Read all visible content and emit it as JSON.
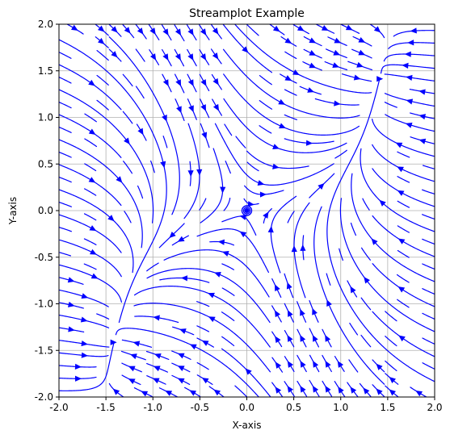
{
  "chart_data": {
    "type": "streamplot",
    "title": "Streamplot Example",
    "xlabel": "X-axis",
    "ylabel": "Y-axis",
    "xlim": [
      -2.0,
      2.0
    ],
    "ylim": [
      -2.0,
      2.0
    ],
    "x_ticks": [
      -2.0,
      -1.5,
      -1.0,
      -0.5,
      0.0,
      0.5,
      1.0,
      1.5,
      2.0
    ],
    "y_ticks": [
      -2.0,
      -1.5,
      -1.0,
      -0.5,
      0.0,
      0.5,
      1.0,
      1.5,
      2.0
    ],
    "x_tick_labels": [
      "-2.0",
      "-1.5",
      "-1.0",
      "-0.5",
      "0.0",
      "0.5",
      "1.0",
      "1.5",
      "2.0"
    ],
    "y_tick_labels": [
      "-2.0",
      "-1.5",
      "-1.0",
      "-0.5",
      "0.0",
      "0.5",
      "1.0",
      "1.5",
      "2.0"
    ],
    "grid": true,
    "line_color": "#0000ff",
    "grid_color": "#b0b0b0",
    "critical_point": [
      0.0,
      0.0
    ],
    "field": {
      "u": "y + x - x^3",
      "v": "x - y"
    }
  }
}
